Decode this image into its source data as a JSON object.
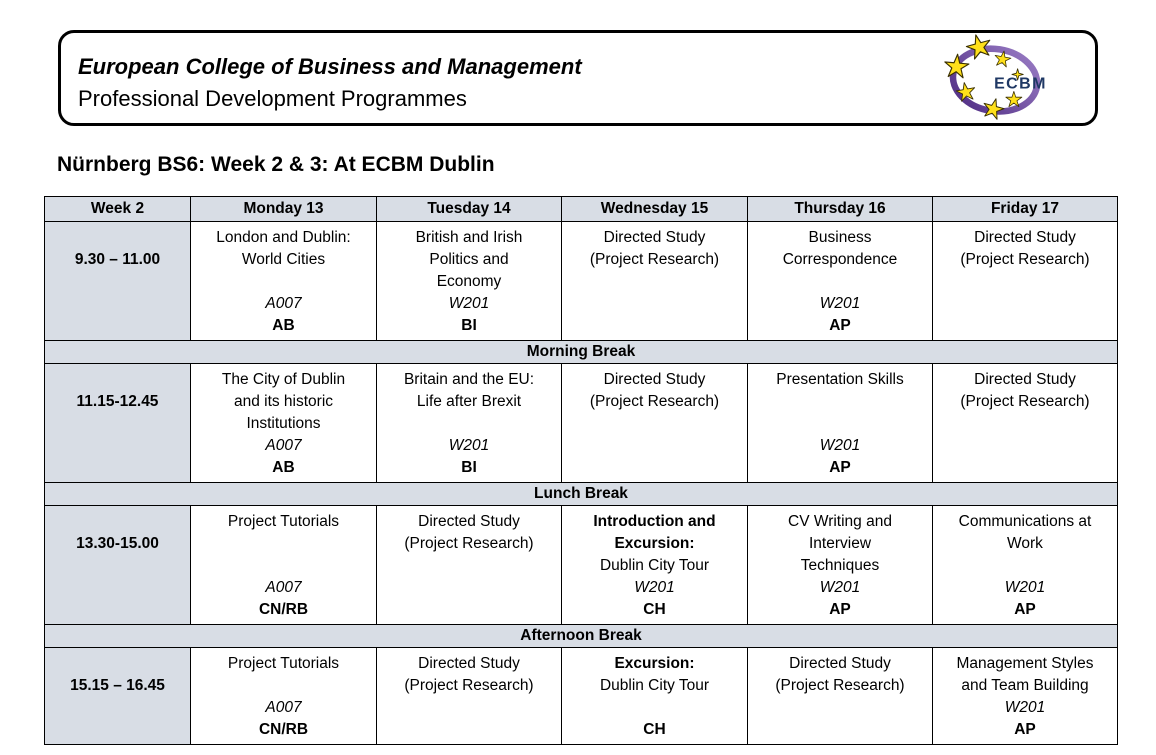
{
  "header": {
    "line1": "European College of Business and Management",
    "line2": "Professional Development Programmes",
    "logo_text": "ECBM",
    "logo_colors": {
      "ring": "#4E2B82",
      "ring_light": "#9B7EC6",
      "star": "#FFE01A",
      "star_outline": "#3A3000",
      "text": "#1F3864"
    }
  },
  "title": "Nürnberg BS6: Week 2 & 3: At ECBM Dublin",
  "table": {
    "colors": {
      "shade": "#D8DDE5",
      "border": "#000000"
    },
    "columns": [
      "Week 2",
      "Monday 13",
      "Tuesday 14",
      "Wednesday 15",
      "Thursday 16",
      "Friday 17"
    ],
    "sections": [
      {
        "type": "row",
        "time": "9.30 – 11.00",
        "cells": [
          {
            "lines": [
              {
                "t": "London and Dublin:",
                "s": "n"
              },
              {
                "t": "World Cities",
                "s": "n"
              },
              {
                "t": "",
                "s": "n"
              },
              {
                "t": "A007",
                "s": "i"
              },
              {
                "t": "AB",
                "s": "b"
              }
            ]
          },
          {
            "lines": [
              {
                "t": "British and Irish",
                "s": "n"
              },
              {
                "t": "Politics and",
                "s": "n"
              },
              {
                "t": "Economy",
                "s": "n"
              },
              {
                "t": "W201",
                "s": "i"
              },
              {
                "t": "BI",
                "s": "b"
              }
            ]
          },
          {
            "lines": [
              {
                "t": "Directed Study",
                "s": "n"
              },
              {
                "t": "(Project Research)",
                "s": "n"
              }
            ]
          },
          {
            "lines": [
              {
                "t": "Business",
                "s": "n"
              },
              {
                "t": "Correspondence",
                "s": "n"
              },
              {
                "t": "",
                "s": "n"
              },
              {
                "t": "W201",
                "s": "i"
              },
              {
                "t": "AP",
                "s": "b"
              }
            ]
          },
          {
            "lines": [
              {
                "t": "Directed Study",
                "s": "n"
              },
              {
                "t": "(Project Research)",
                "s": "n"
              }
            ]
          }
        ]
      },
      {
        "type": "break",
        "label": "Morning Break"
      },
      {
        "type": "row",
        "time": "11.15-12.45",
        "cells": [
          {
            "lines": [
              {
                "t": "The City of Dublin",
                "s": "n"
              },
              {
                "t": "and its historic",
                "s": "n"
              },
              {
                "t": "Institutions",
                "s": "n"
              },
              {
                "t": "A007",
                "s": "i"
              },
              {
                "t": "AB",
                "s": "b"
              }
            ]
          },
          {
            "lines": [
              {
                "t": "Britain and the EU:",
                "s": "n"
              },
              {
                "t": "Life after Brexit",
                "s": "n"
              },
              {
                "t": "",
                "s": "n"
              },
              {
                "t": "W201",
                "s": "i"
              },
              {
                "t": "BI",
                "s": "b"
              }
            ]
          },
          {
            "lines": [
              {
                "t": "Directed Study",
                "s": "n"
              },
              {
                "t": "(Project Research)",
                "s": "n"
              }
            ]
          },
          {
            "lines": [
              {
                "t": "Presentation Skills",
                "s": "n"
              },
              {
                "t": "",
                "s": "n"
              },
              {
                "t": "",
                "s": "n"
              },
              {
                "t": "W201",
                "s": "i"
              },
              {
                "t": "AP",
                "s": "b"
              }
            ]
          },
          {
            "lines": [
              {
                "t": "Directed Study",
                "s": "n"
              },
              {
                "t": "(Project Research)",
                "s": "n"
              }
            ]
          }
        ]
      },
      {
        "type": "break",
        "label": "Lunch Break"
      },
      {
        "type": "row",
        "time": "13.30-15.00",
        "cells": [
          {
            "lines": [
              {
                "t": "Project Tutorials",
                "s": "n"
              },
              {
                "t": "",
                "s": "n"
              },
              {
                "t": "",
                "s": "n"
              },
              {
                "t": "A007",
                "s": "i"
              },
              {
                "t": "CN/RB",
                "s": "b"
              }
            ]
          },
          {
            "lines": [
              {
                "t": "Directed Study",
                "s": "n"
              },
              {
                "t": "(Project Research)",
                "s": "n"
              }
            ]
          },
          {
            "lines": [
              {
                "t": "Introduction and",
                "s": "b"
              },
              {
                "t": "Excursion:",
                "s": "b"
              },
              {
                "t": "Dublin City Tour",
                "s": "n"
              },
              {
                "t": "W201",
                "s": "i"
              },
              {
                "t": "CH",
                "s": "b"
              }
            ]
          },
          {
            "lines": [
              {
                "t": "CV Writing and",
                "s": "n"
              },
              {
                "t": "Interview",
                "s": "n"
              },
              {
                "t": "Techniques",
                "s": "n"
              },
              {
                "t": "W201",
                "s": "i"
              },
              {
                "t": "AP",
                "s": "b"
              }
            ]
          },
          {
            "lines": [
              {
                "t": "Communications at",
                "s": "n"
              },
              {
                "t": "Work",
                "s": "n"
              },
              {
                "t": "",
                "s": "n"
              },
              {
                "t": "W201",
                "s": "i"
              },
              {
                "t": "AP",
                "s": "b"
              }
            ]
          }
        ]
      },
      {
        "type": "break",
        "label": "Afternoon Break"
      },
      {
        "type": "row",
        "time": "15.15 – 16.45",
        "cells": [
          {
            "lines": [
              {
                "t": "Project Tutorials",
                "s": "n"
              },
              {
                "t": "",
                "s": "n"
              },
              {
                "t": "A007",
                "s": "i"
              },
              {
                "t": "CN/RB",
                "s": "b"
              }
            ]
          },
          {
            "lines": [
              {
                "t": "Directed Study",
                "s": "n"
              },
              {
                "t": "(Project Research)",
                "s": "n"
              }
            ]
          },
          {
            "lines": [
              {
                "t": "Excursion:",
                "s": "b"
              },
              {
                "t": "Dublin City Tour",
                "s": "n"
              },
              {
                "t": "",
                "s": "n"
              },
              {
                "t": "CH",
                "s": "b"
              }
            ]
          },
          {
            "lines": [
              {
                "t": "Directed Study",
                "s": "n"
              },
              {
                "t": "(Project Research)",
                "s": "n"
              }
            ]
          },
          {
            "lines": [
              {
                "t": "Management Styles",
                "s": "n"
              },
              {
                "t": "and Team Building",
                "s": "n"
              },
              {
                "t": "W201",
                "s": "i"
              },
              {
                "t": "AP",
                "s": "b"
              }
            ]
          }
        ]
      }
    ]
  }
}
